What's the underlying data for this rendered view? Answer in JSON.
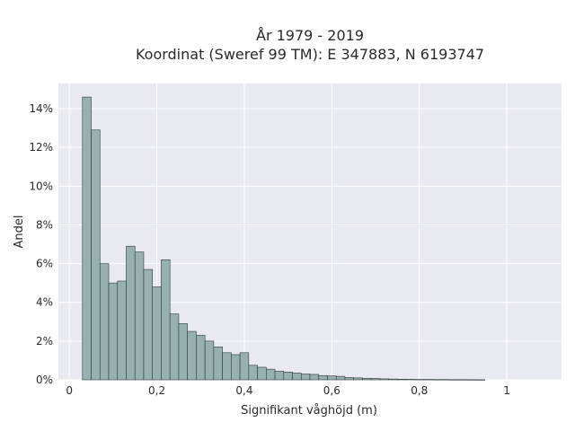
{
  "chart_data": {
    "type": "bar",
    "title_line1": "År 1979 - 2019",
    "title_line2": "Koordinat (Sweref 99 TM): E 347883, N 6193747",
    "xlabel": "Signifikant våghöjd (m)",
    "ylabel": "Andel",
    "xlim": [
      -0.025,
      1.125
    ],
    "ylim": [
      0,
      15.3
    ],
    "grid": true,
    "xticks": [
      {
        "value": 0,
        "label": "0"
      },
      {
        "value": 0.2,
        "label": "0,2"
      },
      {
        "value": 0.4,
        "label": "0,4"
      },
      {
        "value": 0.6,
        "label": "0,6"
      },
      {
        "value": 0.8,
        "label": "0,8"
      },
      {
        "value": 1.0,
        "label": "1"
      }
    ],
    "yticks": [
      {
        "value": 0,
        "label": "0%"
      },
      {
        "value": 2,
        "label": "2%"
      },
      {
        "value": 4,
        "label": "4%"
      },
      {
        "value": 6,
        "label": "6%"
      },
      {
        "value": 8,
        "label": "8%"
      },
      {
        "value": 10,
        "label": "10%"
      },
      {
        "value": 12,
        "label": "12%"
      },
      {
        "value": 14,
        "label": "14%"
      }
    ],
    "bin_start": 0.03,
    "bin_width": 0.02,
    "values": [
      14.6,
      12.9,
      6.0,
      5.0,
      5.1,
      6.9,
      6.6,
      5.7,
      4.8,
      6.2,
      3.4,
      2.9,
      2.5,
      2.3,
      2.0,
      1.7,
      1.4,
      1.3,
      1.4,
      0.75,
      0.65,
      0.55,
      0.45,
      0.4,
      0.35,
      0.3,
      0.28,
      0.22,
      0.2,
      0.18,
      0.12,
      0.1,
      0.08,
      0.07,
      0.05,
      0.04,
      0.03,
      0.025,
      0.02,
      0.02,
      0.015,
      0.015,
      0.01,
      0.01,
      0.008,
      0.005
    ],
    "colors": {
      "bar_fill": "#96b1b0",
      "bar_stroke": "#2f3a3a",
      "plot_bg": "#e9e9f1",
      "grid": "#ffffff"
    }
  }
}
